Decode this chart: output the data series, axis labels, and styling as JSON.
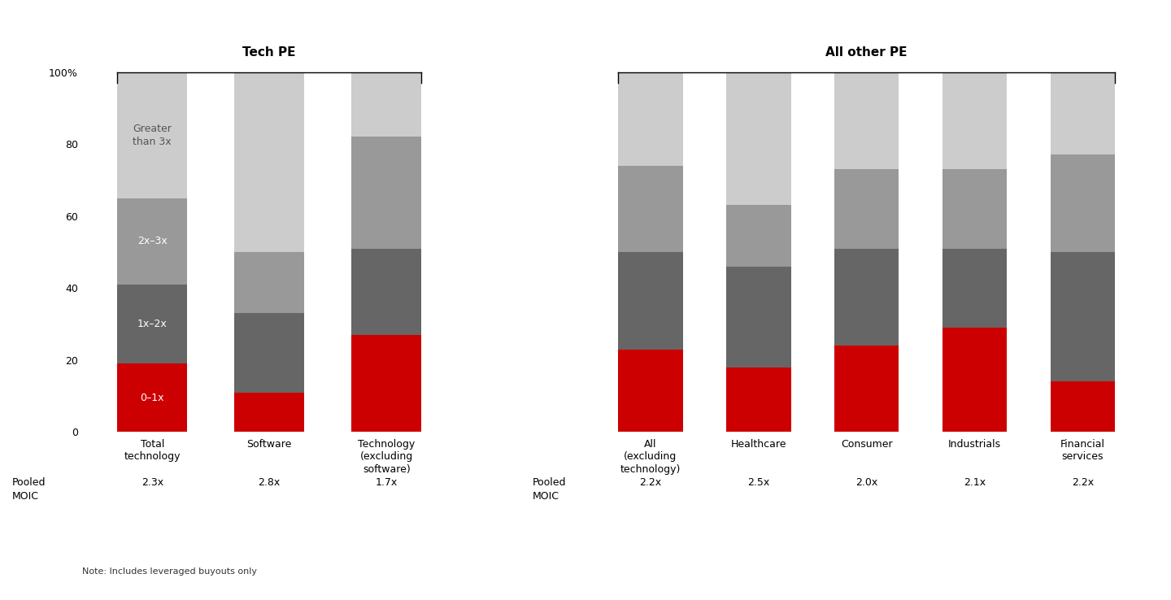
{
  "tech_pe": {
    "title": "Tech PE",
    "categories": [
      "Total\ntechnology",
      "Software",
      "Technology\n(excluding\nsoftware)"
    ],
    "moic": [
      "2.3x",
      "2.8x",
      "1.7x"
    ],
    "seg_0_1x": [
      19,
      11,
      27
    ],
    "seg_1_2x": [
      22,
      22,
      24
    ],
    "seg_2_3x": [
      24,
      17,
      31
    ],
    "seg_gt3x": [
      35,
      50,
      18
    ]
  },
  "other_pe": {
    "title": "All other PE",
    "categories": [
      "All\n(excluding\ntechnology)",
      "Healthcare",
      "Consumer",
      "Industrials",
      "Financial\nservices"
    ],
    "moic": [
      "2.2x",
      "2.5x",
      "2.0x",
      "2.1x",
      "2.2x"
    ],
    "seg_0_1x": [
      23,
      18,
      24,
      29,
      14
    ],
    "seg_1_2x": [
      27,
      28,
      27,
      22,
      36
    ],
    "seg_2_3x": [
      24,
      17,
      22,
      22,
      27
    ],
    "seg_gt3x": [
      26,
      37,
      27,
      27,
      23
    ]
  },
  "color_0_1x": "#cc0000",
  "color_1_2x": "#666666",
  "color_2_3x": "#999999",
  "color_gt3x": "#cccccc",
  "lc_0_1x": "white",
  "lc_1_2x": "white",
  "lc_2_3x": "white",
  "lc_gt3x": "#555555",
  "yticks": [
    0,
    20,
    40,
    60,
    80,
    100
  ],
  "note": "Note: Includes leveraged buyouts only",
  "pooled_moic_label": "Pooled\nMOIC",
  "bar_width": 0.6,
  "bg_color": "#ffffff"
}
